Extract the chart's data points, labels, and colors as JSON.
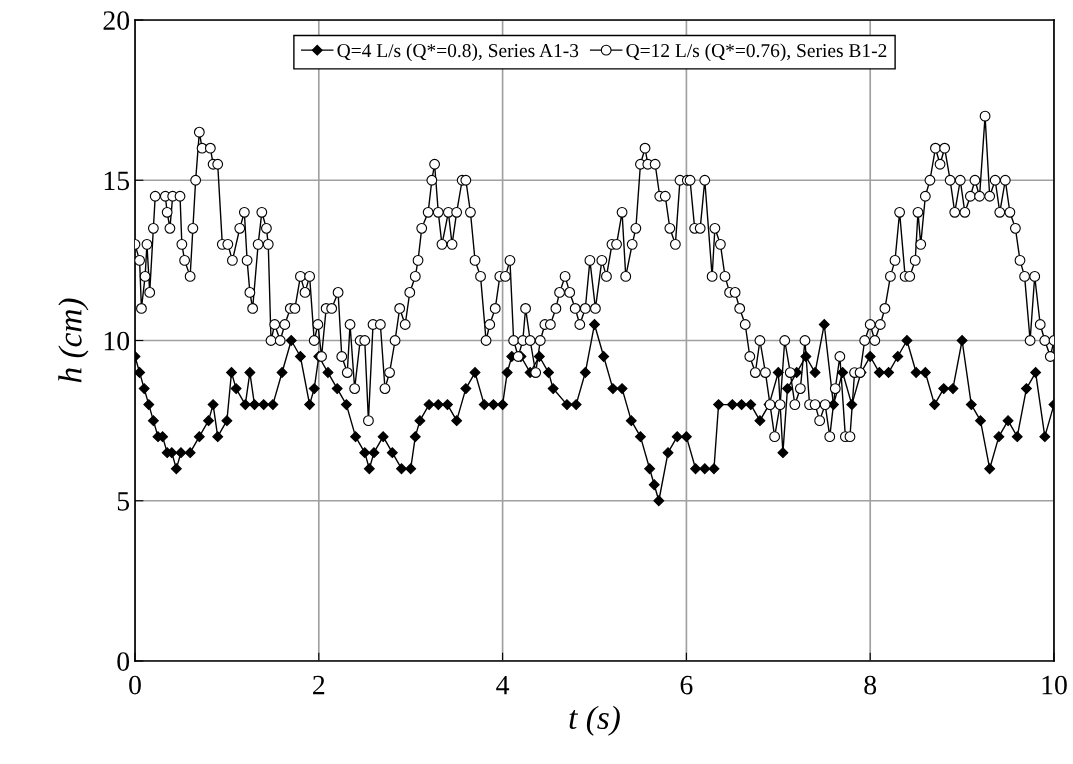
{
  "chart_data": {
    "type": "line",
    "xlabel": "t (s)",
    "ylabel": "h (cm)",
    "xlim": [
      0,
      10
    ],
    "ylim": [
      0,
      20
    ],
    "xticks": [
      0,
      2,
      4,
      6,
      8,
      10
    ],
    "yticks": [
      0,
      5,
      10,
      15,
      20
    ],
    "grid": true,
    "legend": "top",
    "line_style": "solid",
    "series": [
      {
        "name": "Q=4 L/s (Q*=0.8), Series A1-3",
        "color": "#000000",
        "marker": "diamond",
        "x": [
          0,
          0.05,
          0.1,
          0.15,
          0.2,
          0.25,
          0.3,
          0.35,
          0.4,
          0.45,
          0.5,
          0.6,
          0.7,
          0.8,
          0.85,
          0.9,
          1.0,
          1.05,
          1.1,
          1.2,
          1.25,
          1.3,
          1.4,
          1.5,
          1.6,
          1.7,
          1.8,
          1.9,
          1.95,
          2.0,
          2.1,
          2.2,
          2.3,
          2.4,
          2.5,
          2.55,
          2.6,
          2.7,
          2.8,
          2.9,
          3.0,
          3.05,
          3.1,
          3.2,
          3.3,
          3.4,
          3.5,
          3.6,
          3.7,
          3.8,
          3.9,
          4.0,
          4.05,
          4.1,
          4.2,
          4.3,
          4.4,
          4.5,
          4.55,
          4.7,
          4.8,
          4.9,
          5.0,
          5.1,
          5.2,
          5.3,
          5.4,
          5.5,
          5.6,
          5.65,
          5.7,
          5.8,
          5.9,
          6.0,
          6.1,
          6.2,
          6.3,
          6.35,
          6.5,
          6.6,
          6.7,
          6.8,
          6.9,
          7.0,
          7.05,
          7.1,
          7.2,
          7.3,
          7.4,
          7.5,
          7.6,
          7.7,
          7.8,
          7.9,
          8.0,
          8.1,
          8.2,
          8.3,
          8.4,
          8.5,
          8.6,
          8.7,
          8.8,
          8.9,
          9.0,
          9.1,
          9.2,
          9.3,
          9.4,
          9.5,
          9.6,
          9.7,
          9.8,
          9.9,
          10.0
        ],
        "values": [
          9.5,
          9,
          8.5,
          8,
          7.5,
          7,
          7,
          6.5,
          6.5,
          6,
          6.5,
          6.5,
          7,
          7.5,
          8,
          7,
          7.5,
          9,
          8.5,
          8,
          9,
          8,
          8,
          8,
          9,
          10,
          9.5,
          8,
          8.5,
          9.5,
          9,
          8.5,
          8,
          7,
          6.5,
          6,
          6.5,
          7,
          6.5,
          6,
          6,
          7,
          7.5,
          8,
          8,
          8,
          7.5,
          8.5,
          9,
          8,
          8,
          8,
          9,
          9.5,
          9.5,
          9,
          9.5,
          9,
          8.5,
          8,
          8,
          9,
          10.5,
          9.5,
          8.5,
          8.5,
          7.5,
          7,
          6,
          5.5,
          5,
          6.5,
          7,
          7,
          6,
          6,
          6,
          8,
          8,
          8,
          8,
          7.5,
          8,
          9,
          6.5,
          8.5,
          9,
          9.5,
          9,
          10.5,
          8,
          9,
          8,
          9,
          9.5,
          9,
          9,
          9.5,
          10,
          9,
          9,
          8,
          8.5,
          8.5,
          10,
          8,
          7.5,
          6,
          7,
          7.5,
          7,
          8.5,
          9,
          7,
          8
        ]
      },
      {
        "name": "Q=12 L/s (Q*=0.76), Series B1-2",
        "color": "#ffffff",
        "marker": "circle",
        "x": [
          0,
          0.05,
          0.07,
          0.11,
          0.13,
          0.16,
          0.2,
          0.22,
          0.33,
          0.35,
          0.38,
          0.41,
          0.49,
          0.51,
          0.54,
          0.6,
          0.63,
          0.66,
          0.7,
          0.73,
          0.82,
          0.85,
          0.9,
          0.95,
          1.01,
          1.06,
          1.14,
          1.19,
          1.22,
          1.25,
          1.28,
          1.34,
          1.38,
          1.43,
          1.45,
          1.48,
          1.52,
          1.58,
          1.63,
          1.69,
          1.74,
          1.8,
          1.85,
          1.9,
          1.95,
          1.99,
          2.03,
          2.08,
          2.14,
          2.21,
          2.25,
          2.31,
          2.34,
          2.39,
          2.45,
          2.5,
          2.54,
          2.59,
          2.67,
          2.72,
          2.77,
          2.83,
          2.88,
          2.94,
          2.99,
          3.05,
          3.08,
          3.12,
          3.19,
          3.23,
          3.26,
          3.3,
          3.34,
          3.41,
          3.45,
          3.5,
          3.56,
          3.6,
          3.65,
          3.7,
          3.76,
          3.82,
          3.86,
          3.92,
          3.97,
          4.03,
          4.08,
          4.12,
          4.17,
          4.22,
          4.25,
          4.3,
          4.36,
          4.41,
          4.46,
          4.52,
          4.58,
          4.62,
          4.68,
          4.73,
          4.79,
          4.84,
          4.9,
          4.95,
          5.01,
          5.08,
          5.13,
          5.19,
          5.24,
          5.3,
          5.34,
          5.41,
          5.45,
          5.5,
          5.55,
          5.58,
          5.66,
          5.71,
          5.77,
          5.82,
          5.88,
          5.93,
          6.01,
          6.04,
          6.09,
          6.15,
          6.2,
          6.28,
          6.31,
          6.37,
          6.42,
          6.47,
          6.53,
          6.58,
          6.64,
          6.69,
          6.75,
          6.8,
          6.86,
          6.91,
          6.96,
          7.02,
          7.07,
          7.13,
          7.18,
          7.24,
          7.29,
          7.34,
          7.4,
          7.45,
          7.51,
          7.56,
          7.62,
          7.67,
          7.73,
          7.78,
          7.83,
          7.89,
          7.94,
          8.0,
          8.05,
          8.11,
          8.16,
          8.22,
          8.27,
          8.32,
          8.38,
          8.43,
          8.49,
          8.52,
          8.55,
          8.6,
          8.65,
          8.71,
          8.76,
          8.81,
          8.87,
          8.92,
          8.98,
          9.03,
          9.09,
          9.14,
          9.19,
          9.25,
          9.3,
          9.36,
          9.41,
          9.47,
          9.52,
          9.58,
          9.63,
          9.68,
          9.74,
          9.79,
          9.85,
          9.9,
          9.96,
          10
        ],
        "values": [
          13,
          12.5,
          11,
          12,
          13,
          11.5,
          13.5,
          14.5,
          14.5,
          14,
          13.5,
          14.5,
          14.5,
          13,
          12.5,
          12,
          13.5,
          15,
          16.5,
          16,
          16,
          15.5,
          15.5,
          13,
          13,
          12.5,
          13.5,
          14,
          12.5,
          11.5,
          11,
          13,
          14,
          13.5,
          13,
          10,
          10.5,
          10,
          10.5,
          11,
          11,
          12,
          11.5,
          12,
          10,
          10.5,
          9.5,
          11,
          11,
          11.5,
          9.5,
          9,
          10.5,
          8.5,
          10,
          10,
          7.5,
          10.5,
          10.5,
          8.5,
          9,
          10,
          11,
          10.5,
          11.5,
          12,
          12.5,
          13.5,
          14,
          15,
          15.5,
          14,
          13,
          14,
          13,
          14,
          15,
          15,
          14,
          12.5,
          12,
          10,
          10.5,
          11,
          12,
          12,
          12.5,
          10,
          9.5,
          10,
          11,
          10,
          9,
          10,
          10.5,
          10.5,
          11,
          11.5,
          12,
          11.5,
          11,
          10.5,
          11,
          12.5,
          11,
          12.5,
          12,
          13,
          13,
          14,
          12,
          13,
          13.5,
          15.5,
          16,
          15.5,
          15.5,
          14.5,
          14.5,
          13.5,
          13,
          15,
          15,
          15,
          13.5,
          13.5,
          15,
          12,
          13.5,
          13,
          12,
          11.5,
          11.5,
          11,
          10.5,
          9.5,
          9,
          10,
          9,
          8,
          7,
          8,
          10,
          9,
          8,
          8.5,
          10,
          8,
          8,
          7.5,
          8,
          7,
          8.5,
          9.5,
          7,
          7,
          9,
          9,
          10,
          10.5,
          10,
          10.5,
          11,
          12,
          12.5,
          14,
          12,
          12,
          12.5,
          14,
          13,
          14.5,
          15,
          16,
          15.5,
          16,
          15,
          14,
          15,
          14,
          14.5,
          15,
          14.5,
          17,
          14.5,
          15,
          14,
          15,
          14,
          13.5,
          12.5,
          12,
          10,
          12,
          10.5,
          10,
          9.5,
          10
        ]
      }
    ]
  }
}
